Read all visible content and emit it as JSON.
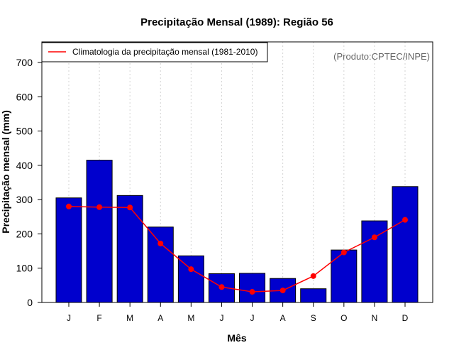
{
  "chart_data": {
    "type": "bar",
    "title": "Precipitação Mensal (1989): Região 56",
    "xlabel": "Mês",
    "ylabel": "Precipitação mensal (mm)",
    "ylim": [
      0,
      760
    ],
    "yticks": [
      0,
      100,
      200,
      300,
      400,
      500,
      600,
      700
    ],
    "grid": "vertical-dotted",
    "categories": [
      "J",
      "F",
      "M",
      "A",
      "M",
      "J",
      "J",
      "A",
      "S",
      "O",
      "N",
      "D"
    ],
    "series": [
      {
        "name": "Precipitação mensal 1989",
        "kind": "bar",
        "values": [
          305,
          415,
          312,
          220,
          136,
          84,
          85,
          70,
          40,
          153,
          238,
          338
        ]
      },
      {
        "name": "Climatologia da precipitação mensal (1981-2010)",
        "kind": "line",
        "values": [
          280,
          278,
          277,
          172,
          97,
          45,
          31,
          35,
          77,
          146,
          190,
          241
        ]
      }
    ],
    "legend": {
      "position": "top-left",
      "entries": [
        "Climatologia da precipitação mensal (1981-2010)"
      ]
    },
    "annotation": "(Produto:CPTEC/INPE)",
    "colors": {
      "bar_fill": "#0000CD",
      "bar_stroke": "#000000",
      "line": "#FF0000",
      "grid": "#D3D3D3",
      "annotation": "#666666"
    }
  }
}
